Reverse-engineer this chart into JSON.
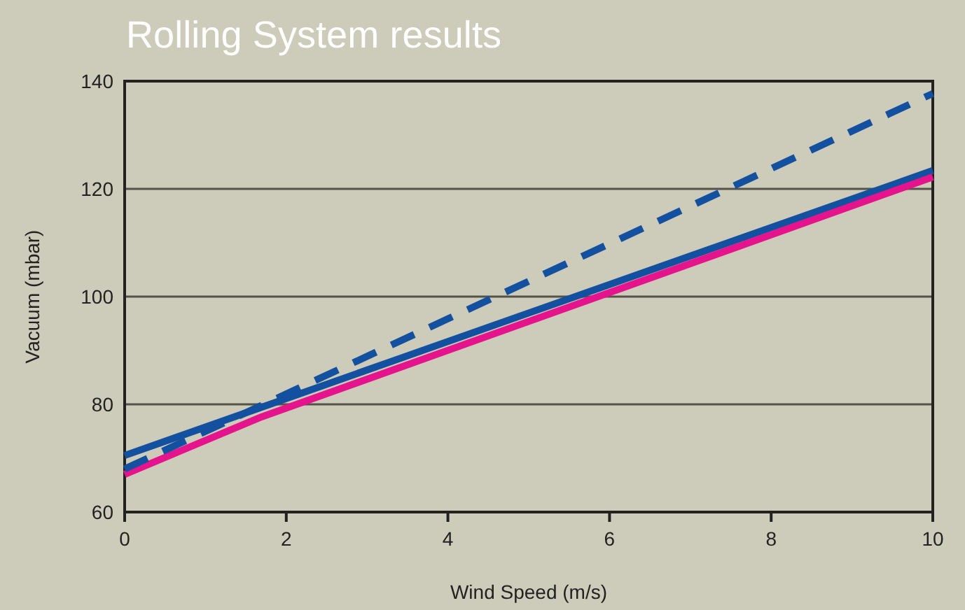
{
  "chart_data": {
    "type": "line",
    "title": "Rolling System results",
    "xlabel": "Wind Speed (m/s)",
    "ylabel": "Vacuum (mbar)",
    "xlim": [
      0,
      10
    ],
    "ylim": [
      60,
      140
    ],
    "xticks": [
      0,
      2,
      4,
      6,
      8,
      10
    ],
    "yticks": [
      60,
      80,
      100,
      120,
      140
    ],
    "grid": "y",
    "series": [
      {
        "color": "#1450a0",
        "x": [
          0,
          10
        ],
        "values": [
          70.5,
          123.4
        ],
        "line_style": "solid"
      },
      {
        "color": "#e6148c",
        "x": [
          0,
          1.7,
          10
        ],
        "values": [
          67,
          77.7,
          122.2
        ],
        "line_style": "solid"
      },
      {
        "color": "#1450a0",
        "x": [
          0,
          10
        ],
        "values": [
          68,
          137.7
        ],
        "line_style": "dashed"
      }
    ]
  }
}
